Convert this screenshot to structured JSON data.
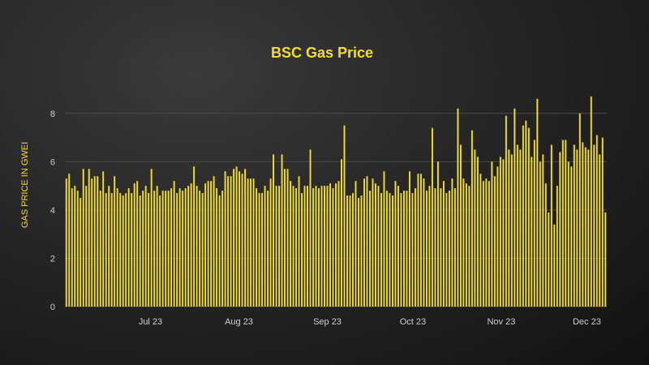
{
  "chart_data": {
    "type": "bar",
    "title": "BSC Gas Price",
    "xlabel": "",
    "ylabel": "GAS PRICE IN GWEI",
    "ylim": [
      0,
      9
    ],
    "yticks": [
      0,
      2,
      4,
      6,
      8
    ],
    "grid": true,
    "x_start": "2023-06-01",
    "x_end": "2023-12-08",
    "xtick_labels": [
      {
        "date": "2023-07-01",
        "label": "Jul 23"
      },
      {
        "date": "2023-08-01",
        "label": "Aug 23"
      },
      {
        "date": "2023-09-01",
        "label": "Sep 23"
      },
      {
        "date": "2023-10-01",
        "label": "Oct 23"
      },
      {
        "date": "2023-11-01",
        "label": "Nov 23"
      },
      {
        "date": "2023-12-01",
        "label": "Dec 23"
      }
    ],
    "colors": {
      "bar": "#f3de2c",
      "title": "#f3de2c",
      "axis_text": "#cfcfcf",
      "grid": "#4a4a4a"
    },
    "values": [
      5.3,
      5.5,
      4.9,
      5.0,
      4.8,
      4.5,
      5.7,
      5.0,
      5.7,
      5.3,
      5.4,
      5.4,
      4.8,
      5.6,
      4.7,
      5.0,
      4.7,
      5.4,
      4.9,
      4.7,
      4.6,
      4.7,
      4.9,
      4.7,
      5.1,
      5.2,
      4.6,
      4.8,
      5.0,
      4.7,
      5.7,
      4.8,
      5.0,
      4.6,
      4.8,
      4.8,
      4.8,
      4.9,
      5.2,
      4.7,
      4.9,
      4.8,
      4.9,
      5.0,
      5.1,
      5.8,
      5.0,
      4.8,
      4.7,
      5.1,
      5.2,
      5.2,
      5.4,
      4.9,
      4.6,
      4.8,
      5.6,
      5.4,
      5.4,
      5.7,
      5.8,
      5.6,
      5.5,
      5.7,
      5.3,
      5.3,
      5.3,
      4.9,
      4.7,
      4.7,
      5.0,
      4.8,
      5.3,
      6.3,
      5.0,
      5.0,
      6.3,
      5.7,
      5.7,
      5.2,
      5.0,
      4.9,
      5.4,
      4.7,
      5.0,
      5.0,
      6.5,
      4.9,
      5.0,
      4.9,
      5.0,
      5.0,
      5.0,
      5.1,
      4.9,
      5.1,
      5.2,
      6.1,
      7.5,
      4.6,
      4.6,
      4.7,
      5.2,
      4.5,
      4.6,
      5.3,
      5.4,
      4.8,
      5.3,
      5.1,
      5.0,
      4.7,
      5.6,
      4.8,
      4.7,
      4.6,
      5.2,
      5.0,
      4.7,
      4.8,
      4.8,
      5.6,
      4.7,
      4.9,
      5.5,
      5.5,
      5.3,
      4.8,
      5.0,
      7.4,
      4.9,
      6.0,
      4.9,
      5.2,
      4.7,
      4.8,
      5.3,
      4.9,
      8.2,
      6.7,
      5.3,
      5.1,
      5.0,
      7.3,
      6.5,
      6.2,
      5.5,
      5.2,
      5.3,
      5.2,
      6.0,
      5.4,
      5.8,
      6.2,
      6.1,
      7.9,
      6.5,
      6.3,
      8.2,
      6.7,
      6.5,
      7.5,
      7.7,
      7.4,
      6.2,
      6.9,
      8.6,
      6.0,
      6.3,
      5.1,
      3.9,
      6.7,
      3.4,
      5.0,
      6.4,
      6.9,
      6.9,
      6.0,
      5.8,
      6.7,
      6.5,
      8.0,
      6.8,
      6.6,
      6.5,
      8.7,
      6.7,
      7.1,
      6.3,
      7.0,
      3.9
    ]
  }
}
